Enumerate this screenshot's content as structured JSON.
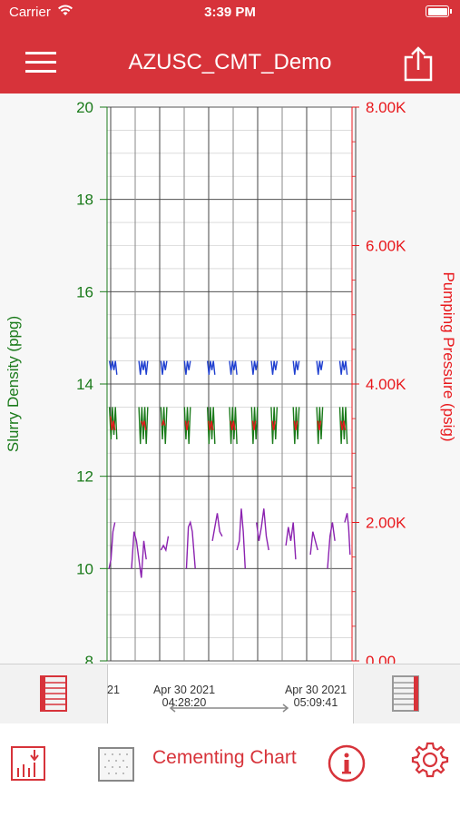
{
  "status_bar": {
    "carrier": "Carrier",
    "time": "3:39 PM"
  },
  "header": {
    "title": "AZUSC_CMT_Demo"
  },
  "range_bar": {
    "partial_label": "21",
    "start_date": "Apr 30 2021",
    "start_time": "04:28:20",
    "end_date": "Apr 30 2021",
    "end_time": "05:09:41"
  },
  "tab_bar": {
    "label": "Cementing Chart"
  },
  "chart_data": {
    "type": "line",
    "left_axis": {
      "label": "Slurry Density (ppg)",
      "range": [
        8,
        20
      ],
      "ticks": [
        "20",
        "18",
        "16",
        "14",
        "12",
        "10",
        "8"
      ],
      "color": "#1a7a1a"
    },
    "right_axis": {
      "label": "Pumping Pressure (psig)",
      "range": [
        0,
        8000
      ],
      "ticks": [
        "8.00K",
        "6.00K",
        "4.00K",
        "2.00K",
        "0.00"
      ],
      "color": "#e8181c"
    },
    "series": [
      {
        "color": "#2040d0",
        "axis": "left",
        "segments": [
          [
            [
              0.5,
              14.5
            ],
            [
              0.8,
              14.3
            ],
            [
              1.1,
              14.5
            ],
            [
              1.4,
              14.3
            ],
            [
              1.7,
              14.5
            ],
            [
              2.0,
              14.2
            ]
          ],
          [
            [
              6.5,
              14.5
            ],
            [
              6.8,
              14.2
            ],
            [
              7.1,
              14.5
            ],
            [
              7.4,
              14.3
            ],
            [
              7.7,
              14.5
            ],
            [
              8.0,
              14.2
            ],
            [
              8.3,
              14.5
            ]
          ],
          [
            [
              11.0,
              14.5
            ],
            [
              11.3,
              14.2
            ],
            [
              11.6,
              14.5
            ],
            [
              11.9,
              14.3
            ],
            [
              12.2,
              14.5
            ]
          ],
          [
            [
              15.8,
              14.5
            ],
            [
              16.1,
              14.2
            ],
            [
              16.4,
              14.5
            ],
            [
              16.7,
              14.3
            ],
            [
              17.0,
              14.5
            ]
          ],
          [
            [
              20.5,
              14.5
            ],
            [
              20.8,
              14.2
            ],
            [
              21.1,
              14.5
            ],
            [
              21.4,
              14.3
            ],
            [
              21.7,
              14.5
            ],
            [
              22.0,
              14.2
            ]
          ],
          [
            [
              25.0,
              14.5
            ],
            [
              25.3,
              14.2
            ],
            [
              25.6,
              14.5
            ],
            [
              25.9,
              14.3
            ],
            [
              26.2,
              14.5
            ],
            [
              26.5,
              14.2
            ]
          ],
          [
            [
              29.5,
              14.5
            ],
            [
              29.8,
              14.2
            ],
            [
              30.1,
              14.5
            ],
            [
              30.4,
              14.3
            ],
            [
              30.7,
              14.5
            ]
          ],
          [
            [
              33.5,
              14.5
            ],
            [
              33.8,
              14.2
            ],
            [
              34.1,
              14.5
            ],
            [
              34.4,
              14.3
            ],
            [
              34.7,
              14.5
            ]
          ],
          [
            [
              38.0,
              14.5
            ],
            [
              38.3,
              14.2
            ],
            [
              38.6,
              14.5
            ],
            [
              38.9,
              14.3
            ],
            [
              39.2,
              14.5
            ]
          ],
          [
            [
              42.8,
              14.5
            ],
            [
              43.1,
              14.2
            ],
            [
              43.4,
              14.5
            ],
            [
              43.7,
              14.3
            ],
            [
              44.0,
              14.5
            ]
          ],
          [
            [
              47.5,
              14.5
            ],
            [
              47.8,
              14.2
            ],
            [
              48.1,
              14.5
            ],
            [
              48.4,
              14.3
            ],
            [
              48.7,
              14.5
            ],
            [
              49.0,
              14.2
            ]
          ]
        ]
      },
      {
        "color": "#1a7a1a",
        "axis": "left",
        "segments": [
          [
            [
              0.5,
              13.5
            ],
            [
              0.8,
              12.8
            ],
            [
              1.1,
              13.5
            ],
            [
              1.4,
              12.9
            ],
            [
              1.7,
              13.5
            ],
            [
              2.0,
              12.8
            ]
          ],
          [
            [
              6.5,
              13.5
            ],
            [
              6.8,
              12.7
            ],
            [
              7.1,
              13.5
            ],
            [
              7.4,
              12.8
            ],
            [
              7.7,
              13.5
            ],
            [
              8.0,
              12.7
            ],
            [
              8.3,
              13.5
            ]
          ],
          [
            [
              11.0,
              13.5
            ],
            [
              11.3,
              12.8
            ],
            [
              11.6,
              13.5
            ],
            [
              11.9,
              12.7
            ],
            [
              12.2,
              13.5
            ]
          ],
          [
            [
              15.8,
              13.5
            ],
            [
              16.1,
              12.8
            ],
            [
              16.4,
              13.5
            ],
            [
              16.7,
              12.7
            ],
            [
              17.0,
              13.5
            ]
          ],
          [
            [
              20.5,
              13.5
            ],
            [
              20.8,
              12.7
            ],
            [
              21.1,
              13.5
            ],
            [
              21.4,
              12.8
            ],
            [
              21.7,
              13.5
            ],
            [
              22.0,
              12.7
            ]
          ],
          [
            [
              25.0,
              13.5
            ],
            [
              25.3,
              12.7
            ],
            [
              25.6,
              13.5
            ],
            [
              25.9,
              12.8
            ],
            [
              26.2,
              13.5
            ],
            [
              26.5,
              12.7
            ]
          ],
          [
            [
              29.5,
              13.5
            ],
            [
              29.8,
              12.7
            ],
            [
              30.1,
              13.5
            ],
            [
              30.4,
              12.8
            ],
            [
              30.7,
              13.5
            ]
          ],
          [
            [
              33.5,
              13.5
            ],
            [
              33.8,
              12.7
            ],
            [
              34.1,
              13.5
            ],
            [
              34.4,
              12.8
            ],
            [
              34.7,
              13.5
            ]
          ],
          [
            [
              38.0,
              13.5
            ],
            [
              38.3,
              12.7
            ],
            [
              38.6,
              13.5
            ],
            [
              38.9,
              12.8
            ],
            [
              39.2,
              13.5
            ]
          ],
          [
            [
              42.8,
              13.5
            ],
            [
              43.1,
              12.7
            ],
            [
              43.4,
              13.5
            ],
            [
              43.7,
              12.8
            ],
            [
              44.0,
              13.5
            ]
          ],
          [
            [
              47.5,
              13.5
            ],
            [
              47.8,
              12.7
            ],
            [
              48.1,
              13.5
            ],
            [
              48.4,
              12.8
            ],
            [
              48.7,
              13.5
            ],
            [
              49.0,
              12.7
            ]
          ]
        ]
      },
      {
        "color": "#e8181c",
        "axis": "left",
        "segments": [
          [
            [
              0.7,
              13.3
            ],
            [
              1.0,
              13.0
            ],
            [
              1.3,
              13.2
            ],
            [
              1.6,
              13.0
            ]
          ],
          [
            [
              7.0,
              13.2
            ],
            [
              7.3,
              13.1
            ],
            [
              7.6,
              13.2
            ],
            [
              7.9,
              13.0
            ]
          ],
          [
            [
              11.2,
              13.1
            ],
            [
              11.5,
              13.2
            ],
            [
              11.8,
              13.1
            ]
          ],
          [
            [
              16.0,
              13.2
            ],
            [
              16.3,
              13.0
            ],
            [
              16.6,
              13.2
            ]
          ],
          [
            [
              20.7,
              13.2
            ],
            [
              21.0,
              13.0
            ],
            [
              21.3,
              13.2
            ],
            [
              21.6,
              13.0
            ]
          ],
          [
            [
              25.2,
              13.2
            ],
            [
              25.5,
              13.0
            ],
            [
              25.8,
              13.2
            ],
            [
              26.1,
              13.0
            ]
          ],
          [
            [
              29.7,
              13.2
            ],
            [
              30.0,
              13.0
            ],
            [
              30.3,
              13.2
            ]
          ],
          [
            [
              33.7,
              13.2
            ],
            [
              34.0,
              13.0
            ],
            [
              34.3,
              13.2
            ]
          ],
          [
            [
              38.2,
              13.2
            ],
            [
              38.5,
              13.0
            ],
            [
              38.8,
              13.2
            ]
          ],
          [
            [
              43.0,
              13.2
            ],
            [
              43.3,
              13.0
            ],
            [
              43.6,
              13.2
            ]
          ],
          [
            [
              47.7,
              13.2
            ],
            [
              48.0,
              13.0
            ],
            [
              48.3,
              13.2
            ],
            [
              48.6,
              13.0
            ]
          ]
        ]
      },
      {
        "color": "#8b22b0",
        "axis": "left",
        "segments": [
          [
            [
              0.4,
              10.0
            ],
            [
              0.8,
              10.2
            ],
            [
              1.2,
              10.8
            ],
            [
              1.6,
              11.0
            ]
          ],
          [
            [
              5.0,
              10.0
            ],
            [
              5.5,
              10.8
            ],
            [
              6.0,
              10.6
            ],
            [
              6.5,
              10.2
            ],
            [
              7.0,
              9.8
            ],
            [
              7.5,
              10.6
            ],
            [
              8.0,
              10.2
            ]
          ],
          [
            [
              11.0,
              10.4
            ],
            [
              11.5,
              10.5
            ],
            [
              12.0,
              10.4
            ],
            [
              12.5,
              10.7
            ]
          ],
          [
            [
              16.2,
              10.0
            ],
            [
              16.6,
              10.9
            ],
            [
              17.0,
              11.0
            ],
            [
              17.4,
              10.8
            ],
            [
              18.0,
              10.0
            ]
          ],
          [
            [
              21.5,
              10.6
            ],
            [
              22.0,
              10.9
            ],
            [
              22.5,
              11.2
            ],
            [
              23.0,
              10.8
            ],
            [
              23.5,
              10.7
            ]
          ],
          [
            [
              26.5,
              10.4
            ],
            [
              27.0,
              10.6
            ],
            [
              27.4,
              11.3
            ],
            [
              27.8,
              10.8
            ],
            [
              28.2,
              10.0
            ]
          ],
          [
            [
              30.5,
              11.0
            ],
            [
              31.0,
              10.6
            ],
            [
              31.5,
              10.9
            ],
            [
              32.0,
              11.3
            ],
            [
              32.5,
              10.7
            ],
            [
              33.0,
              10.4
            ]
          ],
          [
            [
              36.5,
              10.5
            ],
            [
              37.0,
              10.9
            ],
            [
              37.5,
              10.6
            ],
            [
              38.0,
              11.0
            ],
            [
              38.5,
              10.2
            ]
          ],
          [
            [
              41.5,
              10.3
            ],
            [
              42.0,
              10.8
            ],
            [
              42.5,
              10.6
            ],
            [
              43.0,
              10.4
            ]
          ],
          [
            [
              45.0,
              10.0
            ],
            [
              45.5,
              10.7
            ],
            [
              46.0,
              11.0
            ],
            [
              46.5,
              10.6
            ]
          ],
          [
            [
              48.5,
              11.0
            ],
            [
              49.0,
              11.2
            ],
            [
              49.3,
              10.9
            ],
            [
              49.6,
              10.3
            ]
          ]
        ]
      }
    ]
  }
}
